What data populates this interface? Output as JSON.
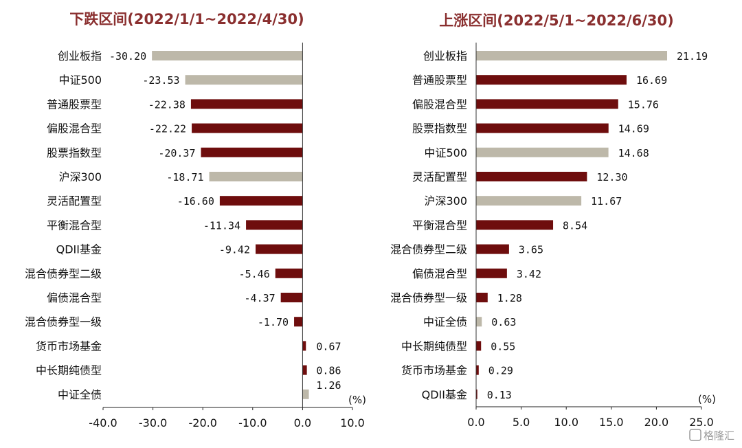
{
  "colors": {
    "fund": "#6e0d0d",
    "index": "#bdb8a9",
    "title": "#8a2f2f"
  },
  "watermark": "格隆汇",
  "chart_data": [
    {
      "type": "bar",
      "orientation": "horizontal",
      "title": "下跌区间(2022/1/1~2022/4/30)",
      "unit": "(%)",
      "xlim": [
        -40,
        10
      ],
      "ticks": [
        "-40.0",
        "-30.0",
        "-20.0",
        "-10.0",
        "0.0",
        "10.0"
      ],
      "categories": [
        "创业板指",
        "中证500",
        "普通股票型",
        "偏股混合型",
        "股票指数型",
        "沪深300",
        "灵活配置型",
        "平衡混合型",
        "QDII基金",
        "混合债券型二级",
        "偏债混合型",
        "混合债券型一级",
        "货币市场基金",
        "中长期纯债型",
        "中证全债"
      ],
      "values": [
        -30.2,
        -23.53,
        -22.38,
        -22.22,
        -20.37,
        -18.71,
        -16.6,
        -11.34,
        -9.42,
        -5.46,
        -4.37,
        -1.7,
        0.67,
        0.86,
        1.26
      ],
      "labels": [
        "-30.20",
        "-23.53",
        "-22.38",
        "-22.22",
        "-20.37",
        "-18.71",
        "-16.60",
        "-11.34",
        "-9.42",
        "-5.46",
        "-4.37",
        "-1.70",
        "0.67",
        "0.86",
        "1.26"
      ],
      "bar_type": [
        "index",
        "index",
        "fund",
        "fund",
        "fund",
        "index",
        "fund",
        "fund",
        "fund",
        "fund",
        "fund",
        "fund",
        "fund",
        "fund",
        "index"
      ]
    },
    {
      "type": "bar",
      "orientation": "horizontal",
      "title": "上涨区间(2022/5/1~2022/6/30)",
      "unit": "(%)",
      "xlim": [
        0,
        25
      ],
      "ticks": [
        "0.0",
        "5.0",
        "10.0",
        "15.0",
        "20.0",
        "25.0"
      ],
      "categories": [
        "创业板指",
        "普通股票型",
        "偏股混合型",
        "股票指数型",
        "中证500",
        "灵活配置型",
        "沪深300",
        "平衡混合型",
        "混合债券型二级",
        "偏债混合型",
        "混合债券型一级",
        "中证全债",
        "中长期纯债型",
        "货币市场基金",
        "QDII基金"
      ],
      "values": [
        21.19,
        16.69,
        15.76,
        14.69,
        14.68,
        12.3,
        11.67,
        8.54,
        3.65,
        3.42,
        1.28,
        0.63,
        0.55,
        0.29,
        0.13
      ],
      "labels": [
        "21.19",
        "16.69",
        "15.76",
        "14.69",
        "14.68",
        "12.30",
        "11.67",
        "8.54",
        "3.65",
        "3.42",
        "1.28",
        "0.63",
        "0.55",
        "0.29",
        "0.13"
      ],
      "bar_type": [
        "index",
        "fund",
        "fund",
        "fund",
        "index",
        "fund",
        "index",
        "fund",
        "fund",
        "fund",
        "fund",
        "index",
        "fund",
        "fund",
        "fund"
      ]
    }
  ]
}
